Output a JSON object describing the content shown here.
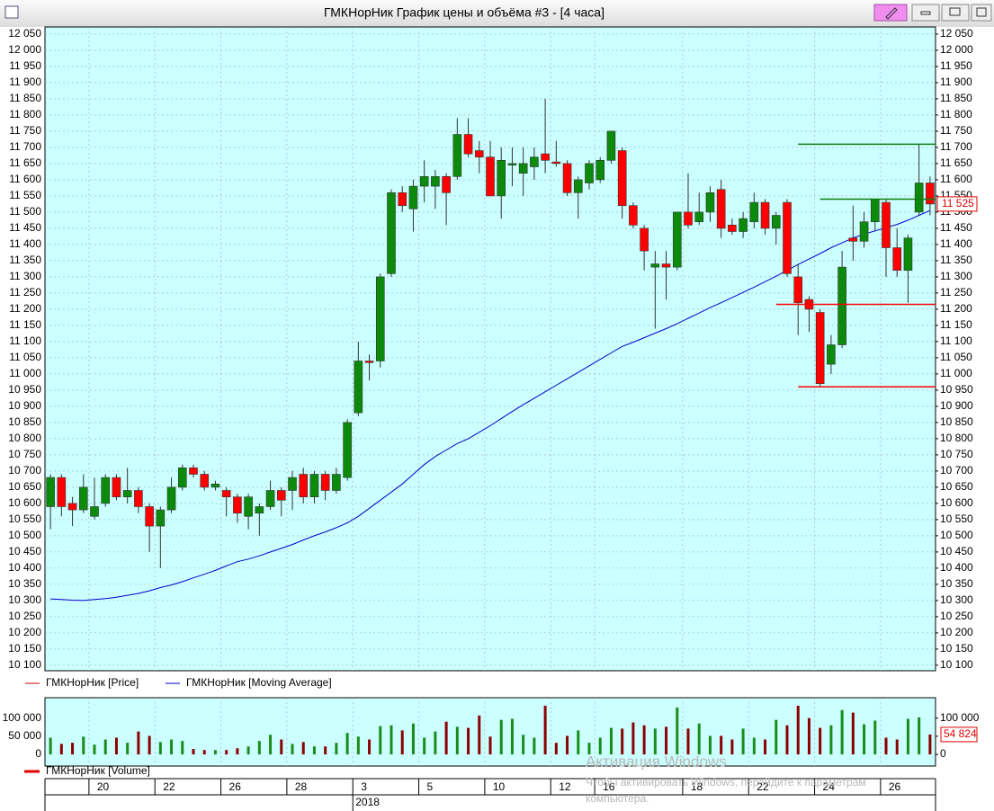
{
  "window_title": "ГМКНорНик График цены и объёма #3 - [4 часа]",
  "chart_data": {
    "type": "candlestick",
    "ylim": [
      10083,
      12072
    ],
    "yticks": [
      {
        "value": 10100,
        "label": "10 100"
      },
      {
        "value": 10150,
        "label": "10 150"
      },
      {
        "value": 10200,
        "label": "10 200"
      },
      {
        "value": 10250,
        "label": "10 250"
      },
      {
        "value": 10300,
        "label": "10 300"
      },
      {
        "value": 10350,
        "label": "10 350"
      },
      {
        "value": 10400,
        "label": "10 400"
      },
      {
        "value": 10450,
        "label": "10 450"
      },
      {
        "value": 10500,
        "label": "10 500"
      },
      {
        "value": 10550,
        "label": "10 550"
      },
      {
        "value": 10600,
        "label": "10 600"
      },
      {
        "value": 10650,
        "label": "10 650"
      },
      {
        "value": 10700,
        "label": "10 700"
      },
      {
        "value": 10750,
        "label": "10 750"
      },
      {
        "value": 10800,
        "label": "10 800"
      },
      {
        "value": 10850,
        "label": "10 850"
      },
      {
        "value": 10900,
        "label": "10 900"
      },
      {
        "value": 10950,
        "label": "10 950"
      },
      {
        "value": 11000,
        "label": "11 000"
      },
      {
        "value": 11050,
        "label": "11 050"
      },
      {
        "value": 11100,
        "label": "11 100"
      },
      {
        "value": 11150,
        "label": "11 150"
      },
      {
        "value": 11200,
        "label": "11 200"
      },
      {
        "value": 11250,
        "label": "11 250"
      },
      {
        "value": 11300,
        "label": "11 300"
      },
      {
        "value": 11350,
        "label": "11 350"
      },
      {
        "value": 11400,
        "label": "11 400"
      },
      {
        "value": 11450,
        "label": "11 450"
      },
      {
        "value": 11500,
        "label": "11 500"
      },
      {
        "value": 11550,
        "label": "11 550"
      },
      {
        "value": 11600,
        "label": "11 600"
      },
      {
        "value": 11650,
        "label": "11 650"
      },
      {
        "value": 11700,
        "label": "11 700"
      },
      {
        "value": 11750,
        "label": "11 750"
      },
      {
        "value": 11800,
        "label": "11 800"
      },
      {
        "value": 11850,
        "label": "11 850"
      },
      {
        "value": 11900,
        "label": "11 900"
      },
      {
        "value": 11950,
        "label": "11 950"
      },
      {
        "value": 12000,
        "label": "12 000"
      },
      {
        "value": 12050,
        "label": "12 050"
      }
    ],
    "grid": true,
    "categories": [
      null,
      null,
      null,
      null,
      "20",
      null,
      null,
      null,
      null,
      null,
      "22",
      null,
      null,
      null,
      null,
      null,
      "26",
      null,
      null,
      null,
      null,
      null,
      "28",
      null,
      null,
      null,
      null,
      null,
      "3",
      null,
      null,
      null,
      null,
      null,
      "5",
      null,
      null,
      null,
      null,
      null,
      "10",
      null,
      null,
      null,
      null,
      null,
      "12",
      null,
      null,
      null,
      "16",
      null,
      null,
      null,
      null,
      null,
      null,
      null,
      "18",
      null,
      null,
      null,
      null,
      null,
      "22",
      null,
      null,
      null,
      null,
      null,
      "24",
      null,
      null,
      null,
      null,
      null,
      "26",
      null,
      null,
      null,
      null
    ],
    "year_label": "2018",
    "year_start": 28,
    "up_color": "#0c8a0c",
    "down_color": "#ff0000",
    "series": [
      {
        "name": "ГМКНорНик [Price]",
        "color": "#c00000",
        "open": [
          10590,
          10680,
          10600,
          10580,
          10560,
          10600,
          10680,
          10620,
          10640,
          10590,
          10530,
          10580,
          10650,
          10710,
          10690,
          10650,
          10640,
          10620,
          10560,
          10570,
          10590,
          10640,
          10640,
          10690,
          10620,
          10690,
          10640,
          10680,
          10880,
          11040,
          11040,
          11310,
          11560,
          11510,
          11580,
          11580,
          11610,
          11610,
          11740,
          11690,
          11670,
          11550,
          11645,
          11620,
          11640,
          11680,
          11655,
          11650,
          11560,
          11590,
          11600,
          11660,
          11690,
          11520,
          11450,
          11330,
          11340,
          11330,
          11500,
          11470,
          11500,
          11570,
          11460,
          11440,
          11470,
          11530,
          11450,
          11530,
          11300,
          11230,
          11190,
          11030,
          11090,
          11420,
          11410,
          11470,
          11530,
          11390,
          11320,
          11500,
          11590
        ],
        "high": [
          10690,
          10690,
          10620,
          10690,
          10680,
          10690,
          10690,
          10710,
          10650,
          10600,
          10590,
          10680,
          10720,
          10720,
          10700,
          10670,
          10650,
          10630,
          10630,
          10600,
          10670,
          10650,
          10700,
          10710,
          10700,
          10700,
          10710,
          10860,
          11100,
          11060,
          11310,
          11570,
          11580,
          11600,
          11660,
          11630,
          11620,
          11790,
          11790,
          11720,
          11720,
          11700,
          11700,
          11700,
          11700,
          11850,
          11720,
          11660,
          11610,
          11660,
          11670,
          11750,
          11700,
          11530,
          11460,
          11380,
          11380,
          11500,
          11620,
          11560,
          11580,
          11600,
          11480,
          11500,
          11560,
          11540,
          11500,
          11540,
          11340,
          11240,
          11200,
          11120,
          11380,
          11520,
          11500,
          11540,
          11540,
          11450,
          11430,
          11710,
          11610
        ],
        "low": [
          10520,
          10560,
          10530,
          10570,
          10550,
          10590,
          10610,
          10600,
          10570,
          10450,
          10400,
          10570,
          10640,
          10680,
          10640,
          10640,
          10560,
          10540,
          10520,
          10500,
          10580,
          10560,
          10580,
          10600,
          10600,
          10610,
          10630,
          10670,
          10870,
          10980,
          11020,
          11300,
          11500,
          11440,
          11530,
          11510,
          11460,
          11600,
          11670,
          11620,
          11550,
          11480,
          11580,
          11550,
          11600,
          11620,
          11640,
          11550,
          11480,
          11570,
          11590,
          11650,
          11480,
          11450,
          11320,
          11140,
          11230,
          11320,
          11450,
          11460,
          11470,
          11420,
          11430,
          11420,
          11450,
          11430,
          11400,
          11300,
          11120,
          11130,
          10960,
          11000,
          11080,
          11350,
          11390,
          11440,
          11300,
          11300,
          11220,
          11490,
          11490
        ],
        "close": [
          10680,
          10590,
          10580,
          10650,
          10590,
          10680,
          10620,
          10640,
          10590,
          10530,
          10580,
          10650,
          10710,
          10690,
          10650,
          10660,
          10620,
          10570,
          10620,
          10590,
          10640,
          10610,
          10680,
          10620,
          10690,
          10640,
          10690,
          10850,
          11040,
          11035,
          11300,
          11560,
          11520,
          11580,
          11610,
          11610,
          11560,
          11740,
          11680,
          11670,
          11550,
          11660,
          11650,
          11650,
          11670,
          11660,
          11650,
          11560,
          11600,
          11650,
          11660,
          11750,
          11520,
          11460,
          11380,
          11340,
          11330,
          11500,
          11460,
          11500,
          11560,
          11450,
          11440,
          11480,
          11530,
          11450,
          11490,
          11310,
          11220,
          11200,
          10970,
          11090,
          11330,
          11410,
          11470,
          11540,
          11390,
          11320,
          11420,
          11590,
          11525
        ],
        "last_label": "11 525"
      },
      {
        "name": "ГМКНорНик [Moving Average]",
        "color": "#0000cc",
        "values": [
          10305,
          10303,
          10301,
          10300,
          10303,
          10306,
          10310,
          10316,
          10322,
          10330,
          10340,
          10348,
          10358,
          10370,
          10381,
          10393,
          10407,
          10420,
          10428,
          10438,
          10450,
          10461,
          10473,
          10487,
          10500,
          10512,
          10525,
          10540,
          10560,
          10585,
          10610,
          10635,
          10660,
          10690,
          10720,
          10745,
          10765,
          10785,
          10800,
          10820,
          10840,
          10862,
          10884,
          10905,
          10925,
          10945,
          10965,
          10985,
          11005,
          11025,
          11045,
          11065,
          11085,
          11098,
          11112,
          11126,
          11140,
          11155,
          11172,
          11188,
          11205,
          11220,
          11236,
          11252,
          11268,
          11285,
          11302,
          11320,
          11338,
          11355,
          11372,
          11390,
          11405,
          11420,
          11432,
          11442,
          11452,
          11462,
          11475,
          11490,
          11505
        ]
      }
    ],
    "levels": [
      {
        "value": 11710,
        "color": "#107c10",
        "from": 68
      },
      {
        "value": 11540,
        "color": "#107c10",
        "from": 70
      },
      {
        "value": 11215,
        "color": "#ff0000",
        "from": 66
      },
      {
        "value": 10960,
        "color": "#ff0000",
        "from": 68
      }
    ],
    "volume": {
      "name": "ГМКНорНик [Volume]",
      "color": "#e00000",
      "up_color": "#1a8c1a",
      "down_color": "#8b0000",
      "ylim": [
        -32000,
        156000
      ],
      "yticks": [
        0,
        {
          "value": 50000,
          "label": "50 000"
        },
        {
          "value": 100000,
          "label": "100 000"
        }
      ],
      "values": [
        46000,
        29000,
        32000,
        49000,
        27000,
        41000,
        46000,
        32000,
        63000,
        51000,
        34000,
        41000,
        37000,
        15000,
        12000,
        12000,
        12000,
        17000,
        22000,
        37000,
        54000,
        41000,
        29000,
        34000,
        22000,
        22000,
        32000,
        59000,
        49000,
        41000,
        78000,
        80000,
        66000,
        85000,
        46000,
        63000,
        90000,
        76000,
        73000,
        107000,
        49000,
        95000,
        98000,
        54000,
        46000,
        134000,
        32000,
        51000,
        66000,
        32000,
        46000,
        73000,
        71000,
        88000,
        80000,
        71000,
        76000,
        129000,
        71000,
        85000,
        51000,
        51000,
        41000,
        71000,
        46000,
        41000,
        95000,
        80000,
        134000,
        100000,
        73000,
        80000,
        122000,
        115000,
        83000,
        93000,
        46000,
        41000,
        98000,
        102000,
        54824
      ],
      "last_label": "54 824"
    }
  },
  "watermark": {
    "title": "Активация Windows",
    "lines": [
      "Чтобы активировать Windows, перейдите к параметрам",
      "компьютера."
    ]
  }
}
